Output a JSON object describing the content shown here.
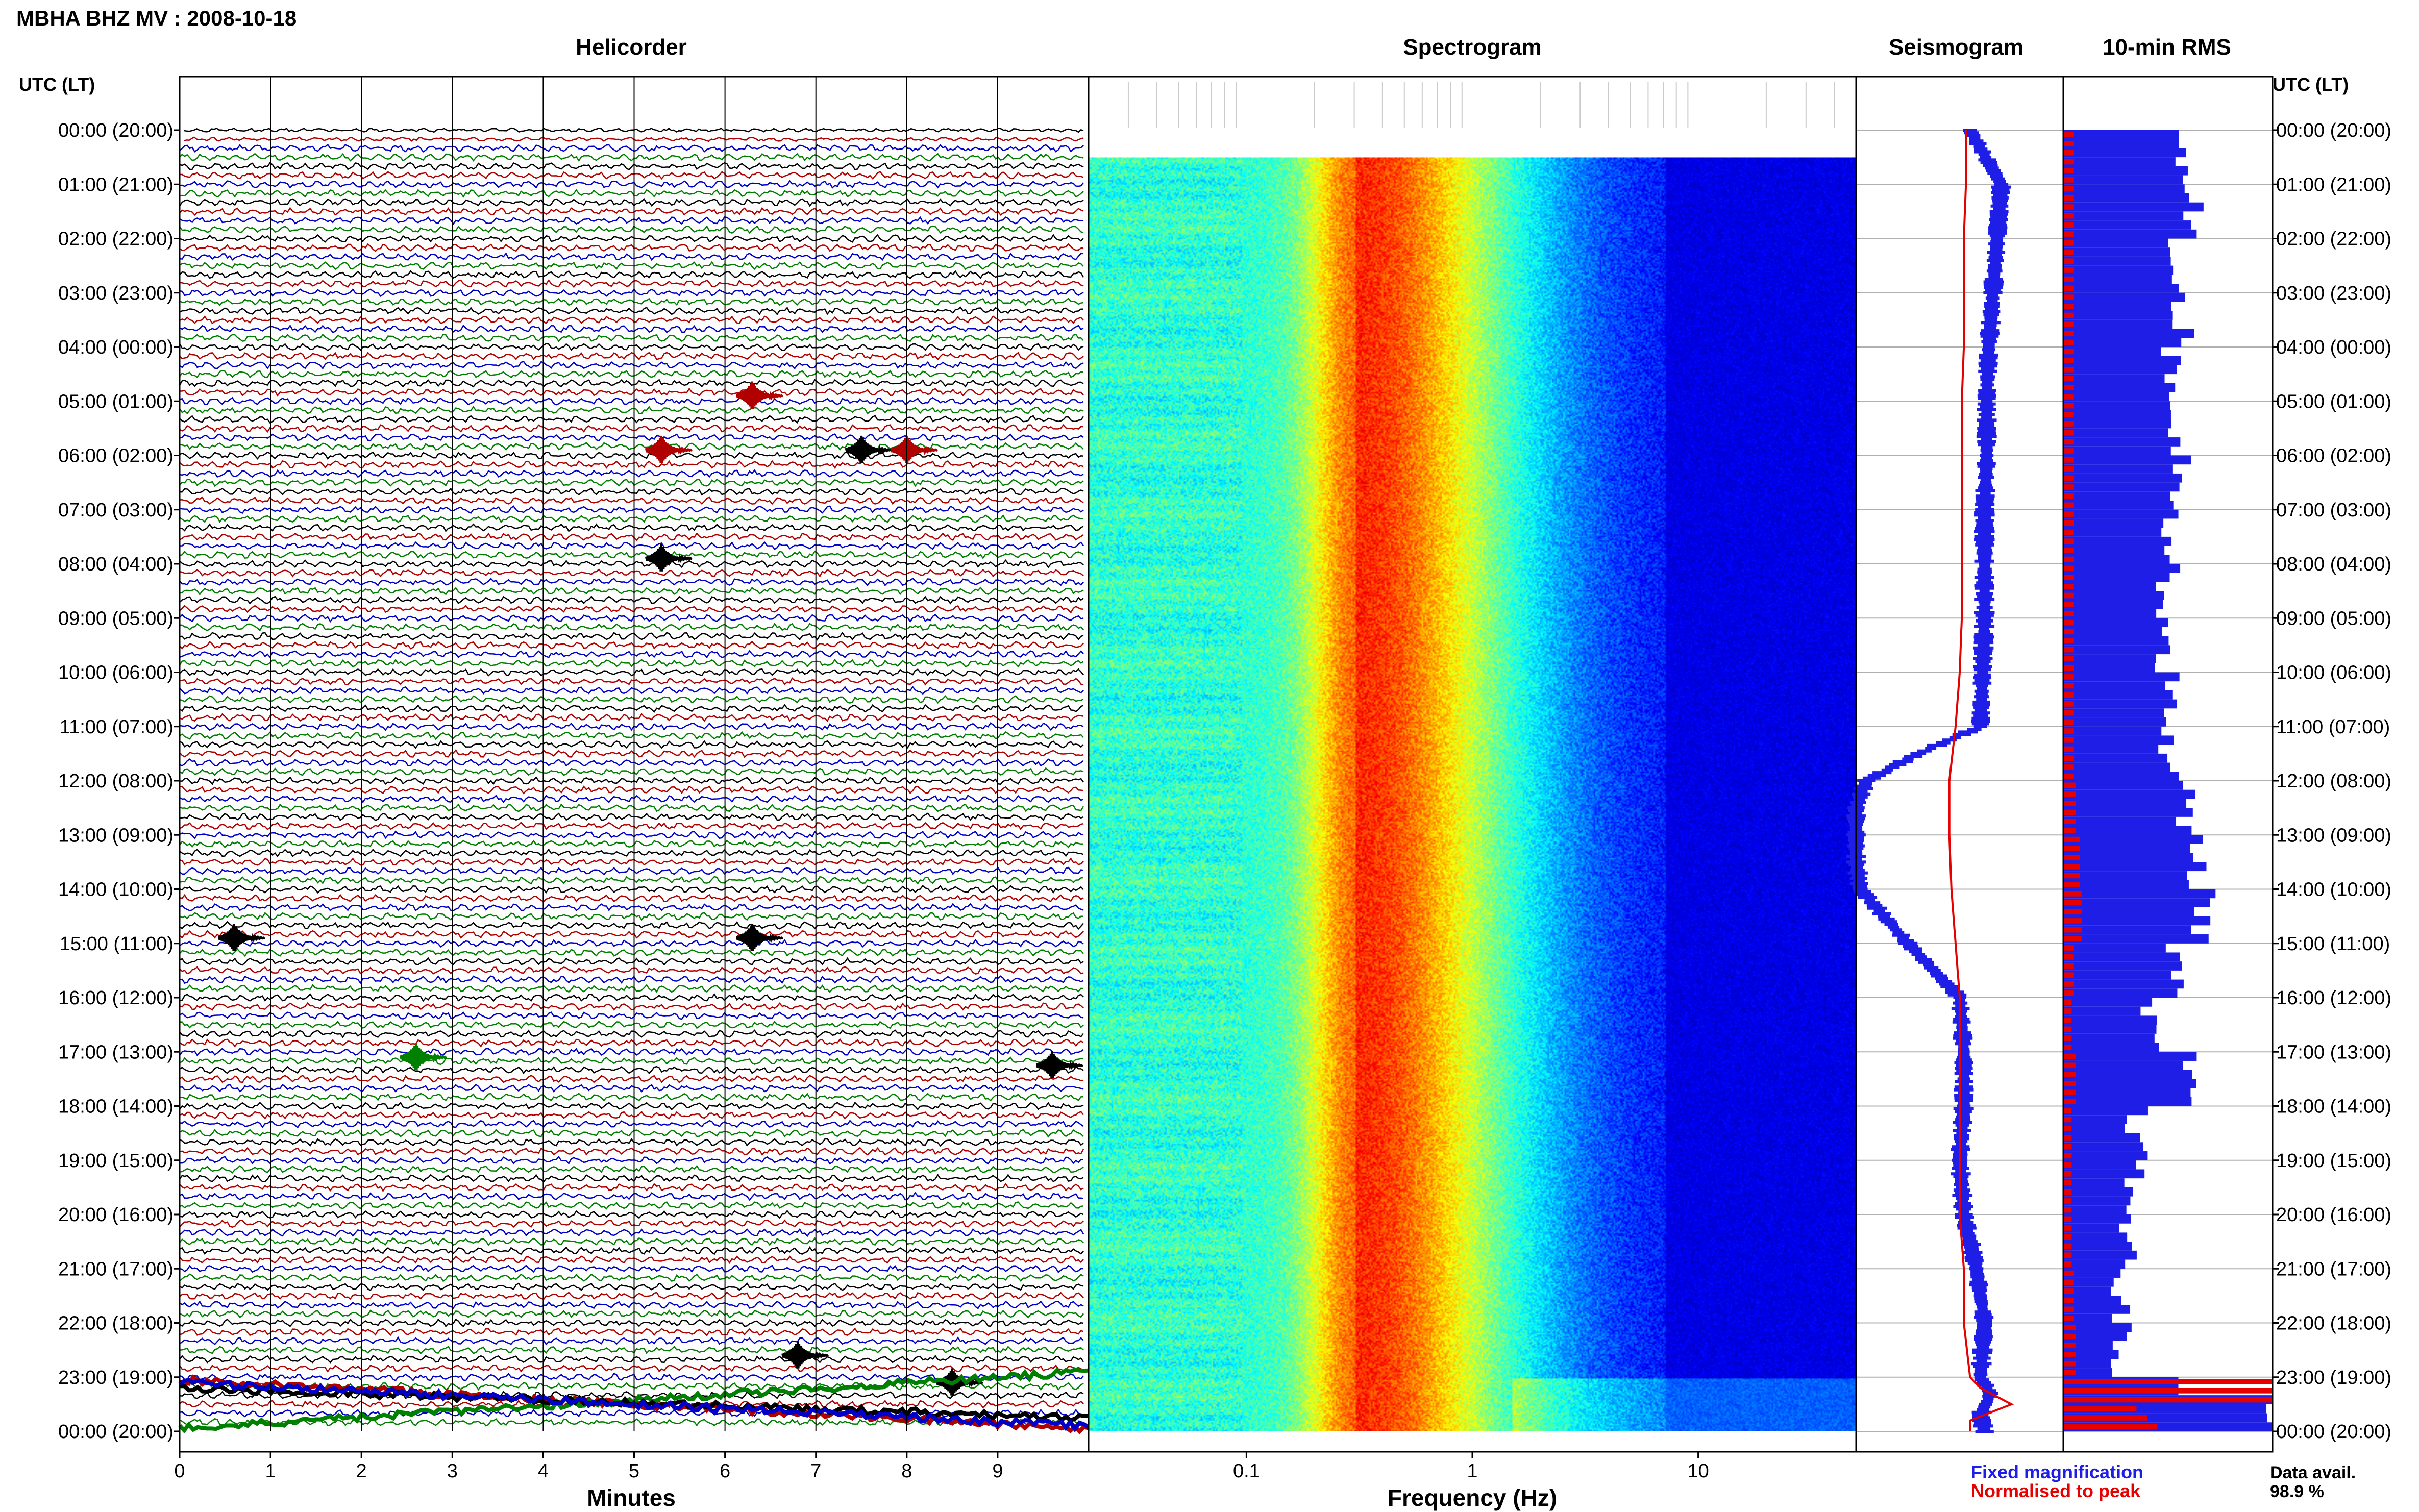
{
  "page_title": "MBHA BHZ MV : 2008-10-18",
  "panel_titles": {
    "helicorder": "Helicorder",
    "spectrogram": "Spectrogram",
    "seismogram": "Seismogram",
    "rms": "10-min RMS"
  },
  "axis_header_left": "UTC (LT)",
  "axis_header_right": "UTC (LT)",
  "time_labels": [
    "00:00 (20:00)",
    "01:00 (21:00)",
    "02:00 (22:00)",
    "03:00 (23:00)",
    "04:00 (00:00)",
    "05:00 (01:00)",
    "06:00 (02:00)",
    "07:00 (03:00)",
    "08:00 (04:00)",
    "09:00 (05:00)",
    "10:00 (06:00)",
    "11:00 (07:00)",
    "12:00 (08:00)",
    "13:00 (09:00)",
    "14:00 (10:00)",
    "15:00 (11:00)",
    "16:00 (12:00)",
    "17:00 (13:00)",
    "18:00 (14:00)",
    "19:00 (15:00)",
    "20:00 (16:00)",
    "21:00 (17:00)",
    "22:00 (18:00)",
    "23:00 (19:00)",
    "00:00 (20:00)"
  ],
  "minutes_axis": {
    "label": "Minutes",
    "ticks": [
      "0",
      "1",
      "2",
      "3",
      "4",
      "5",
      "6",
      "7",
      "8",
      "9"
    ]
  },
  "frequency_axis": {
    "label": "Frequency (Hz)",
    "ticks": [
      "0.1",
      "1",
      "10"
    ]
  },
  "legend": {
    "fixed": "Fixed magnification",
    "normalised": "Normalised to peak",
    "fixed_color": "#1e1ee6",
    "normalised_color": "#e60000"
  },
  "data_avail": {
    "label": "Data avail.",
    "value": "98.9 %"
  },
  "trace_colors": [
    "#000000",
    "#b00000",
    "#0000c8",
    "#008000"
  ],
  "spectrogram_colormap": "jet",
  "chart_data": [
    {
      "type": "line",
      "title": "Helicorder",
      "xlabel": "Minutes",
      "xlim": [
        0,
        10
      ],
      "rows_per_hour": 6,
      "events": [
        {
          "hour": 4.9,
          "minute": 6.3,
          "color": "#b00000"
        },
        {
          "hour": 5.9,
          "minute": 5.3,
          "color": "#b00000"
        },
        {
          "hour": 5.9,
          "minute": 7.5,
          "color": "#000000"
        },
        {
          "hour": 5.9,
          "minute": 8.0,
          "color": "#b00000"
        },
        {
          "hour": 7.9,
          "minute": 5.3,
          "color": "#000000"
        },
        {
          "hour": 14.9,
          "minute": 6.3,
          "color": "#000000"
        },
        {
          "hour": 14.9,
          "minute": 0.6,
          "color": "#000000"
        },
        {
          "hour": 17.25,
          "minute": 9.6,
          "color": "#000000"
        },
        {
          "hour": 17.1,
          "minute": 2.6,
          "color": "#008000"
        },
        {
          "hour": 22.6,
          "minute": 6.8,
          "color": "#000000"
        },
        {
          "hour": 23.1,
          "minute": 8.5,
          "color": "#000000"
        }
      ]
    },
    {
      "type": "heatmap",
      "title": "Spectrogram",
      "xlabel": "Frequency (Hz)",
      "xscale": "log",
      "xlim": [
        0.02,
        50
      ],
      "colormap": "jet",
      "peak_frequency_hz": 0.3,
      "data_gap_hours": [
        0,
        0.5
      ]
    },
    {
      "type": "line",
      "title": "Seismogram",
      "series": [
        {
          "name": "Fixed magnification",
          "color": "#1e1ee6",
          "hours": [
            0,
            1,
            2,
            3,
            4,
            5,
            6,
            7,
            8,
            9,
            10,
            11,
            11.5,
            12,
            12.5,
            13,
            13.5,
            14,
            15,
            16,
            17,
            18,
            19,
            20,
            21,
            22,
            23,
            23.3,
            23.7,
            24
          ],
          "values": [
            0.55,
            0.7,
            0.68,
            0.66,
            0.64,
            0.63,
            0.63,
            0.62,
            0.62,
            0.62,
            0.61,
            0.6,
            0.3,
            0.05,
            0.0,
            0.0,
            0.0,
            0.02,
            0.25,
            0.5,
            0.52,
            0.52,
            0.5,
            0.52,
            0.58,
            0.62,
            0.6,
            0.65,
            0.6,
            0.62
          ]
        },
        {
          "name": "Normalised to peak",
          "color": "#e60000",
          "hours": [
            0,
            1,
            2,
            3,
            4,
            5,
            6,
            7,
            8,
            9,
            10,
            11,
            12,
            13,
            14,
            15,
            16,
            17,
            18,
            19,
            20,
            21,
            22,
            23,
            23.2,
            23.5,
            23.8,
            24
          ],
          "values": [
            0.53,
            0.53,
            0.52,
            0.52,
            0.52,
            0.51,
            0.51,
            0.51,
            0.51,
            0.51,
            0.5,
            0.48,
            0.45,
            0.45,
            0.46,
            0.48,
            0.5,
            0.5,
            0.5,
            0.5,
            0.5,
            0.52,
            0.52,
            0.55,
            0.6,
            0.75,
            0.55,
            0.55
          ]
        }
      ]
    },
    {
      "type": "bar",
      "title": "10-min RMS",
      "orientation": "horizontal",
      "bin_minutes": 10,
      "fixed_magnification_hourly": [
        0.55,
        0.62,
        0.55,
        0.57,
        0.52,
        0.55,
        0.57,
        0.51,
        0.5,
        0.49,
        0.5,
        0.51,
        0.58,
        0.65,
        0.67,
        0.52,
        0.4,
        0.6,
        0.35,
        0.33,
        0.3,
        0.28,
        0.27,
        1.0
      ],
      "normalised_hourly": [
        0.05,
        0.05,
        0.05,
        0.05,
        0.05,
        0.05,
        0.05,
        0.05,
        0.05,
        0.05,
        0.05,
        0.05,
        0.06,
        0.08,
        0.09,
        0.05,
        0.04,
        0.06,
        0.04,
        0.04,
        0.04,
        0.05,
        0.06,
        1.0
      ]
    }
  ]
}
